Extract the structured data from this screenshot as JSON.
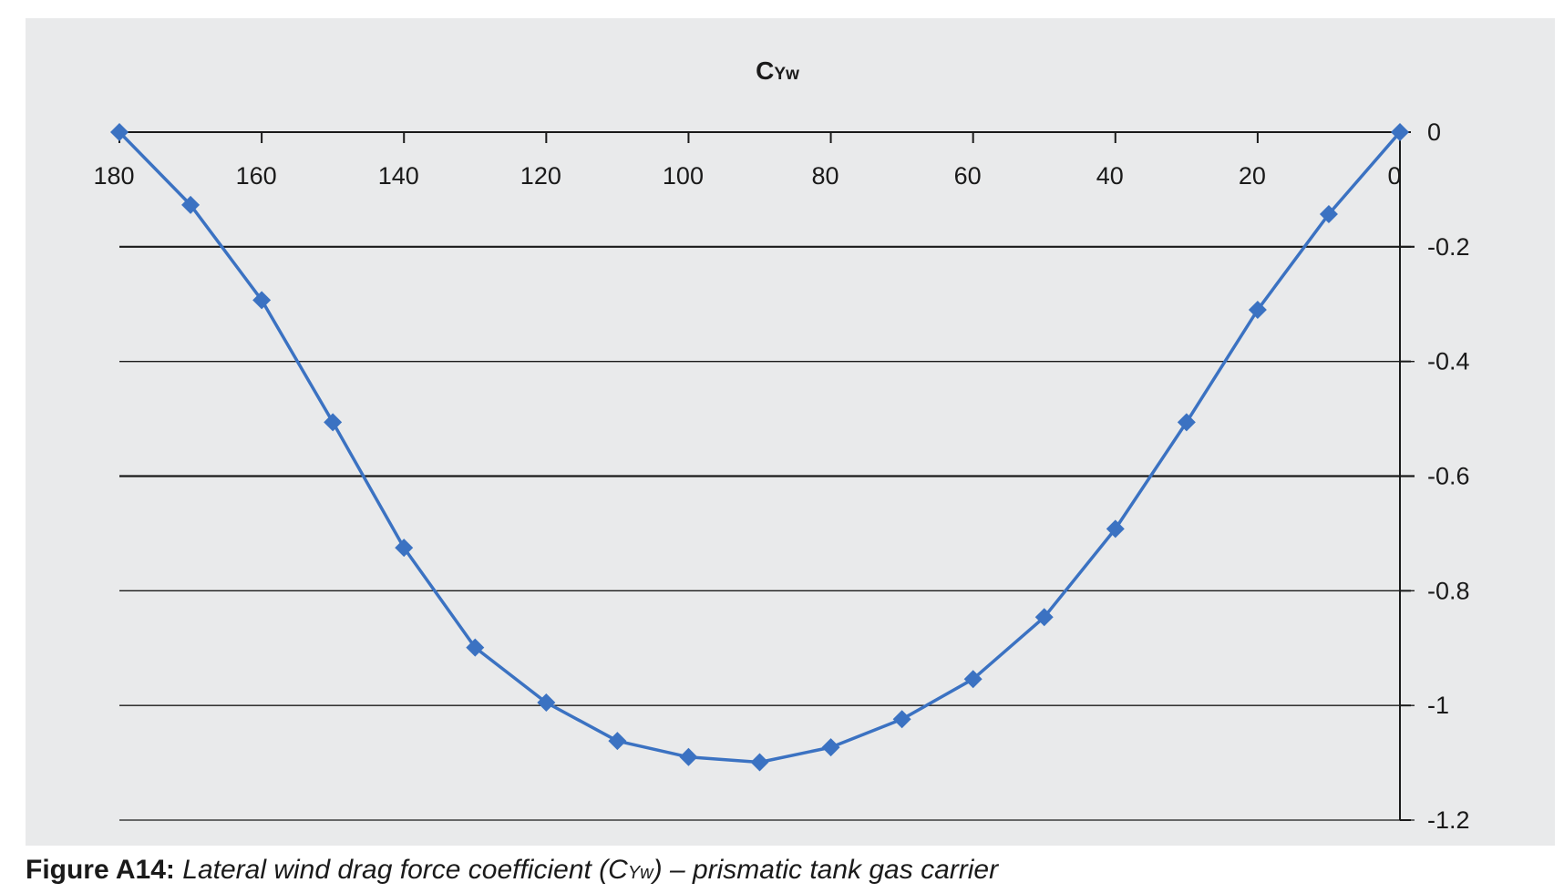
{
  "chart_data": {
    "type": "line",
    "title_main": "C",
    "title_sub": "Yw",
    "x_reversed": true,
    "xlim": [
      180,
      0
    ],
    "ylim": [
      -1.2,
      0
    ],
    "x_ticks": [
      180,
      160,
      140,
      120,
      100,
      80,
      60,
      40,
      20,
      0
    ],
    "y_ticks": [
      0,
      -0.2,
      -0.4,
      -0.6,
      -0.8,
      -1,
      -1.2
    ],
    "x_tick_labels": [
      "180",
      "160",
      "140",
      "120",
      "100",
      "80",
      "60",
      "40",
      "20",
      "0"
    ],
    "y_tick_labels": [
      "0",
      "-0.2",
      "-0.4",
      "-0.6",
      "-0.8",
      "-1",
      "-1.2"
    ],
    "x_axis_position": "top (at y = 0)",
    "y_axis_position": "right (at x = 0)",
    "grid": "horizontal",
    "marker": "diamond",
    "series": [
      {
        "x": [
          180,
          170,
          160,
          150,
          140,
          130,
          120,
          110,
          100,
          90,
          80,
          70,
          60,
          50,
          40,
          30,
          20,
          10,
          0
        ],
        "values": [
          0,
          -0.127,
          -0.293,
          -0.506,
          -0.725,
          -0.899,
          -0.995,
          -1.062,
          -1.09,
          -1.099,
          -1.073,
          -1.024,
          -0.954,
          -0.846,
          -0.692,
          -0.506,
          -0.31,
          -0.143,
          0
        ],
        "color": "#3b72c2"
      }
    ]
  },
  "caption": {
    "label": "Figure A14:",
    "text_before": " Lateral wind drag force coefficient (C",
    "text_sub": "Yw",
    "text_after": ") – prismatic tank gas carrier"
  }
}
